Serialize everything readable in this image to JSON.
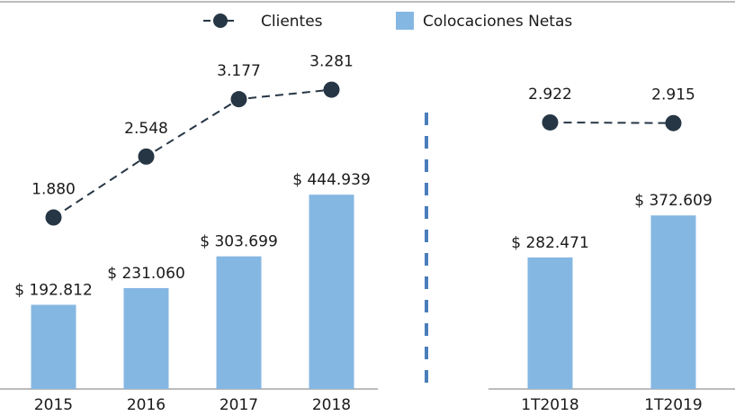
{
  "chart_data": [
    {
      "type": "bar",
      "categories": [
        "2015",
        "2016",
        "2017",
        "2018"
      ],
      "series": [
        {
          "name": "Colocaciones Netas",
          "color": "#85b7e3",
          "values": [
            192812,
            231060,
            303699,
            444939
          ],
          "value_labels": [
            "$ 192.812",
            "$ 231.060",
            "$ 303.699",
            "$ 444.939"
          ]
        },
        {
          "name": "Clientes",
          "color": "#263645",
          "axis": "y2",
          "values": [
            1880,
            2548,
            3177,
            3281
          ],
          "value_labels": [
            "1.880",
            "2.548",
            "3.177",
            "3.281"
          ]
        }
      ],
      "ylim": [
        0,
        800000
      ],
      "y2lim": [
        0,
        3830
      ]
    },
    {
      "type": "bar",
      "categories": [
        "1T2018",
        "1T2019"
      ],
      "series": [
        {
          "color": "#85b7e3",
          "values": [
            282471,
            372609
          ],
          "value_labels": [
            "$ 282.471",
            "$ 372.609"
          ]
        },
        {
          "color": "#263645",
          "axis": "y2",
          "values": [
            2922,
            2915
          ],
          "value_labels": [
            "2.922",
            "2.915"
          ]
        }
      ],
      "ylim": [
        0,
        750000
      ],
      "y2lim": [
        0,
        3830
      ]
    }
  ]
}
